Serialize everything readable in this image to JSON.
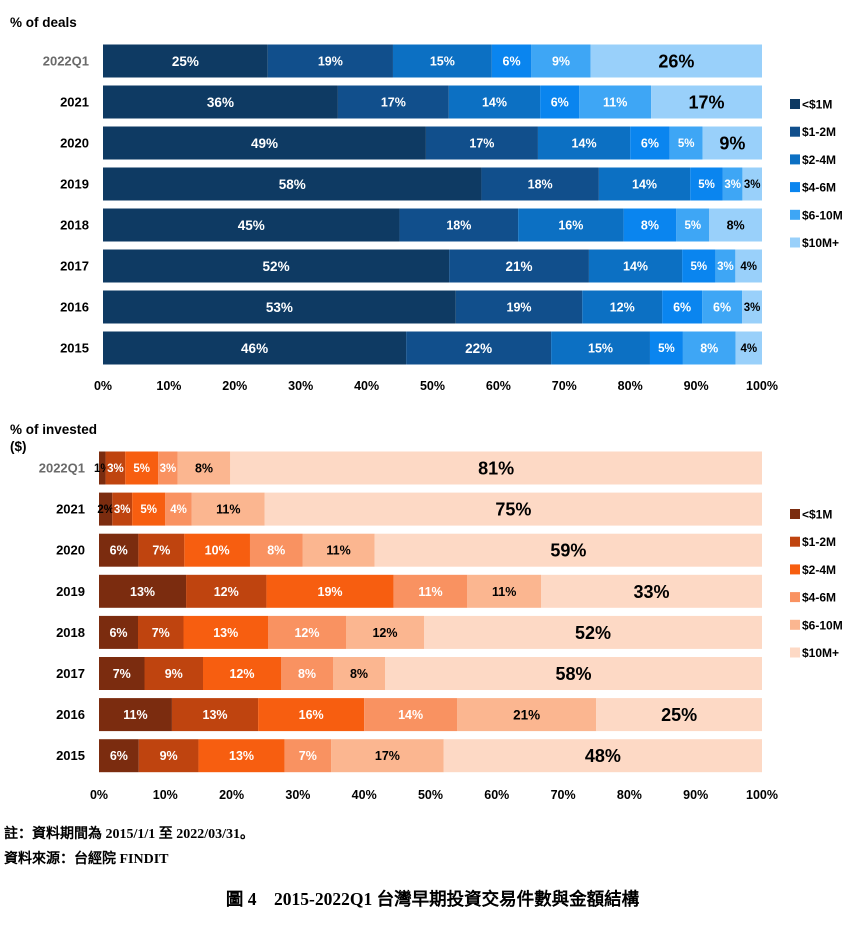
{
  "chart_data": [
    {
      "type": "bar",
      "orientation": "horizontal",
      "stacked": true,
      "ylabel": "% of deals",
      "categories": [
        "2022Q1",
        "2021",
        "2020",
        "2019",
        "2018",
        "2017",
        "2016",
        "2015"
      ],
      "x_ticks": [
        "0%",
        "10%",
        "20%",
        "30%",
        "40%",
        "50%",
        "60%",
        "70%",
        "80%",
        "90%",
        "100%"
      ],
      "xlim": [
        0,
        100
      ],
      "legend_position": "right",
      "grid": false,
      "series": [
        {
          "name": "<$1M",
          "color": "#0e3a63",
          "values": [
            25,
            36,
            49,
            58,
            45,
            52,
            53,
            46
          ]
        },
        {
          "name": "$1-2M",
          "color": "#114f8c",
          "values": [
            19,
            17,
            17,
            18,
            18,
            21,
            19,
            22
          ]
        },
        {
          "name": "$2-4M",
          "color": "#0c70c3",
          "values": [
            15,
            14,
            14,
            14,
            16,
            14,
            12,
            15
          ]
        },
        {
          "name": "$4-6M",
          "color": "#0a85ef",
          "values": [
            6,
            6,
            6,
            5,
            8,
            5,
            6,
            5
          ]
        },
        {
          "name": "$6-10M",
          "color": "#3ea6f5",
          "values": [
            9,
            11,
            5,
            3,
            5,
            3,
            6,
            8
          ]
        },
        {
          "name": "$10M+",
          "color": "#99d0fa",
          "values": [
            26,
            17,
            9,
            3,
            8,
            4,
            3,
            4
          ]
        }
      ]
    },
    {
      "type": "bar",
      "orientation": "horizontal",
      "stacked": true,
      "ylabel": "% of invested ($)",
      "categories": [
        "2022Q1",
        "2021",
        "2020",
        "2019",
        "2018",
        "2017",
        "2016",
        "2015"
      ],
      "x_ticks": [
        "0%",
        "10%",
        "20%",
        "30%",
        "40%",
        "50%",
        "60%",
        "70%",
        "80%",
        "90%",
        "100%"
      ],
      "xlim": [
        0,
        100
      ],
      "legend_position": "right",
      "grid": false,
      "series": [
        {
          "name": "<$1M",
          "color": "#7b2c0f",
          "values": [
            1,
            2,
            6,
            13,
            6,
            7,
            11,
            6
          ]
        },
        {
          "name": "$1-2M",
          "color": "#bf440f",
          "values": [
            3,
            3,
            7,
            12,
            7,
            9,
            13,
            9
          ]
        },
        {
          "name": "$2-4M",
          "color": "#f75e10",
          "values": [
            5,
            5,
            10,
            19,
            13,
            12,
            16,
            13
          ]
        },
        {
          "name": "$4-6M",
          "color": "#f99261",
          "values": [
            3,
            4,
            8,
            11,
            12,
            8,
            14,
            7
          ]
        },
        {
          "name": "$6-10M",
          "color": "#fbb690",
          "values": [
            8,
            11,
            11,
            11,
            12,
            8,
            21,
            17
          ]
        },
        {
          "name": "$10M+",
          "color": "#fdd9c5",
          "values": [
            81,
            75,
            59,
            33,
            52,
            58,
            25,
            48
          ]
        }
      ]
    }
  ],
  "notes": {
    "note": "註：資料期間為 2015/1/1 至 2022/03/31。",
    "source": "資料來源：台經院 FINDIT"
  },
  "caption": "圖 4　2015-2022Q1  台灣早期投資交易件數與金額結構"
}
